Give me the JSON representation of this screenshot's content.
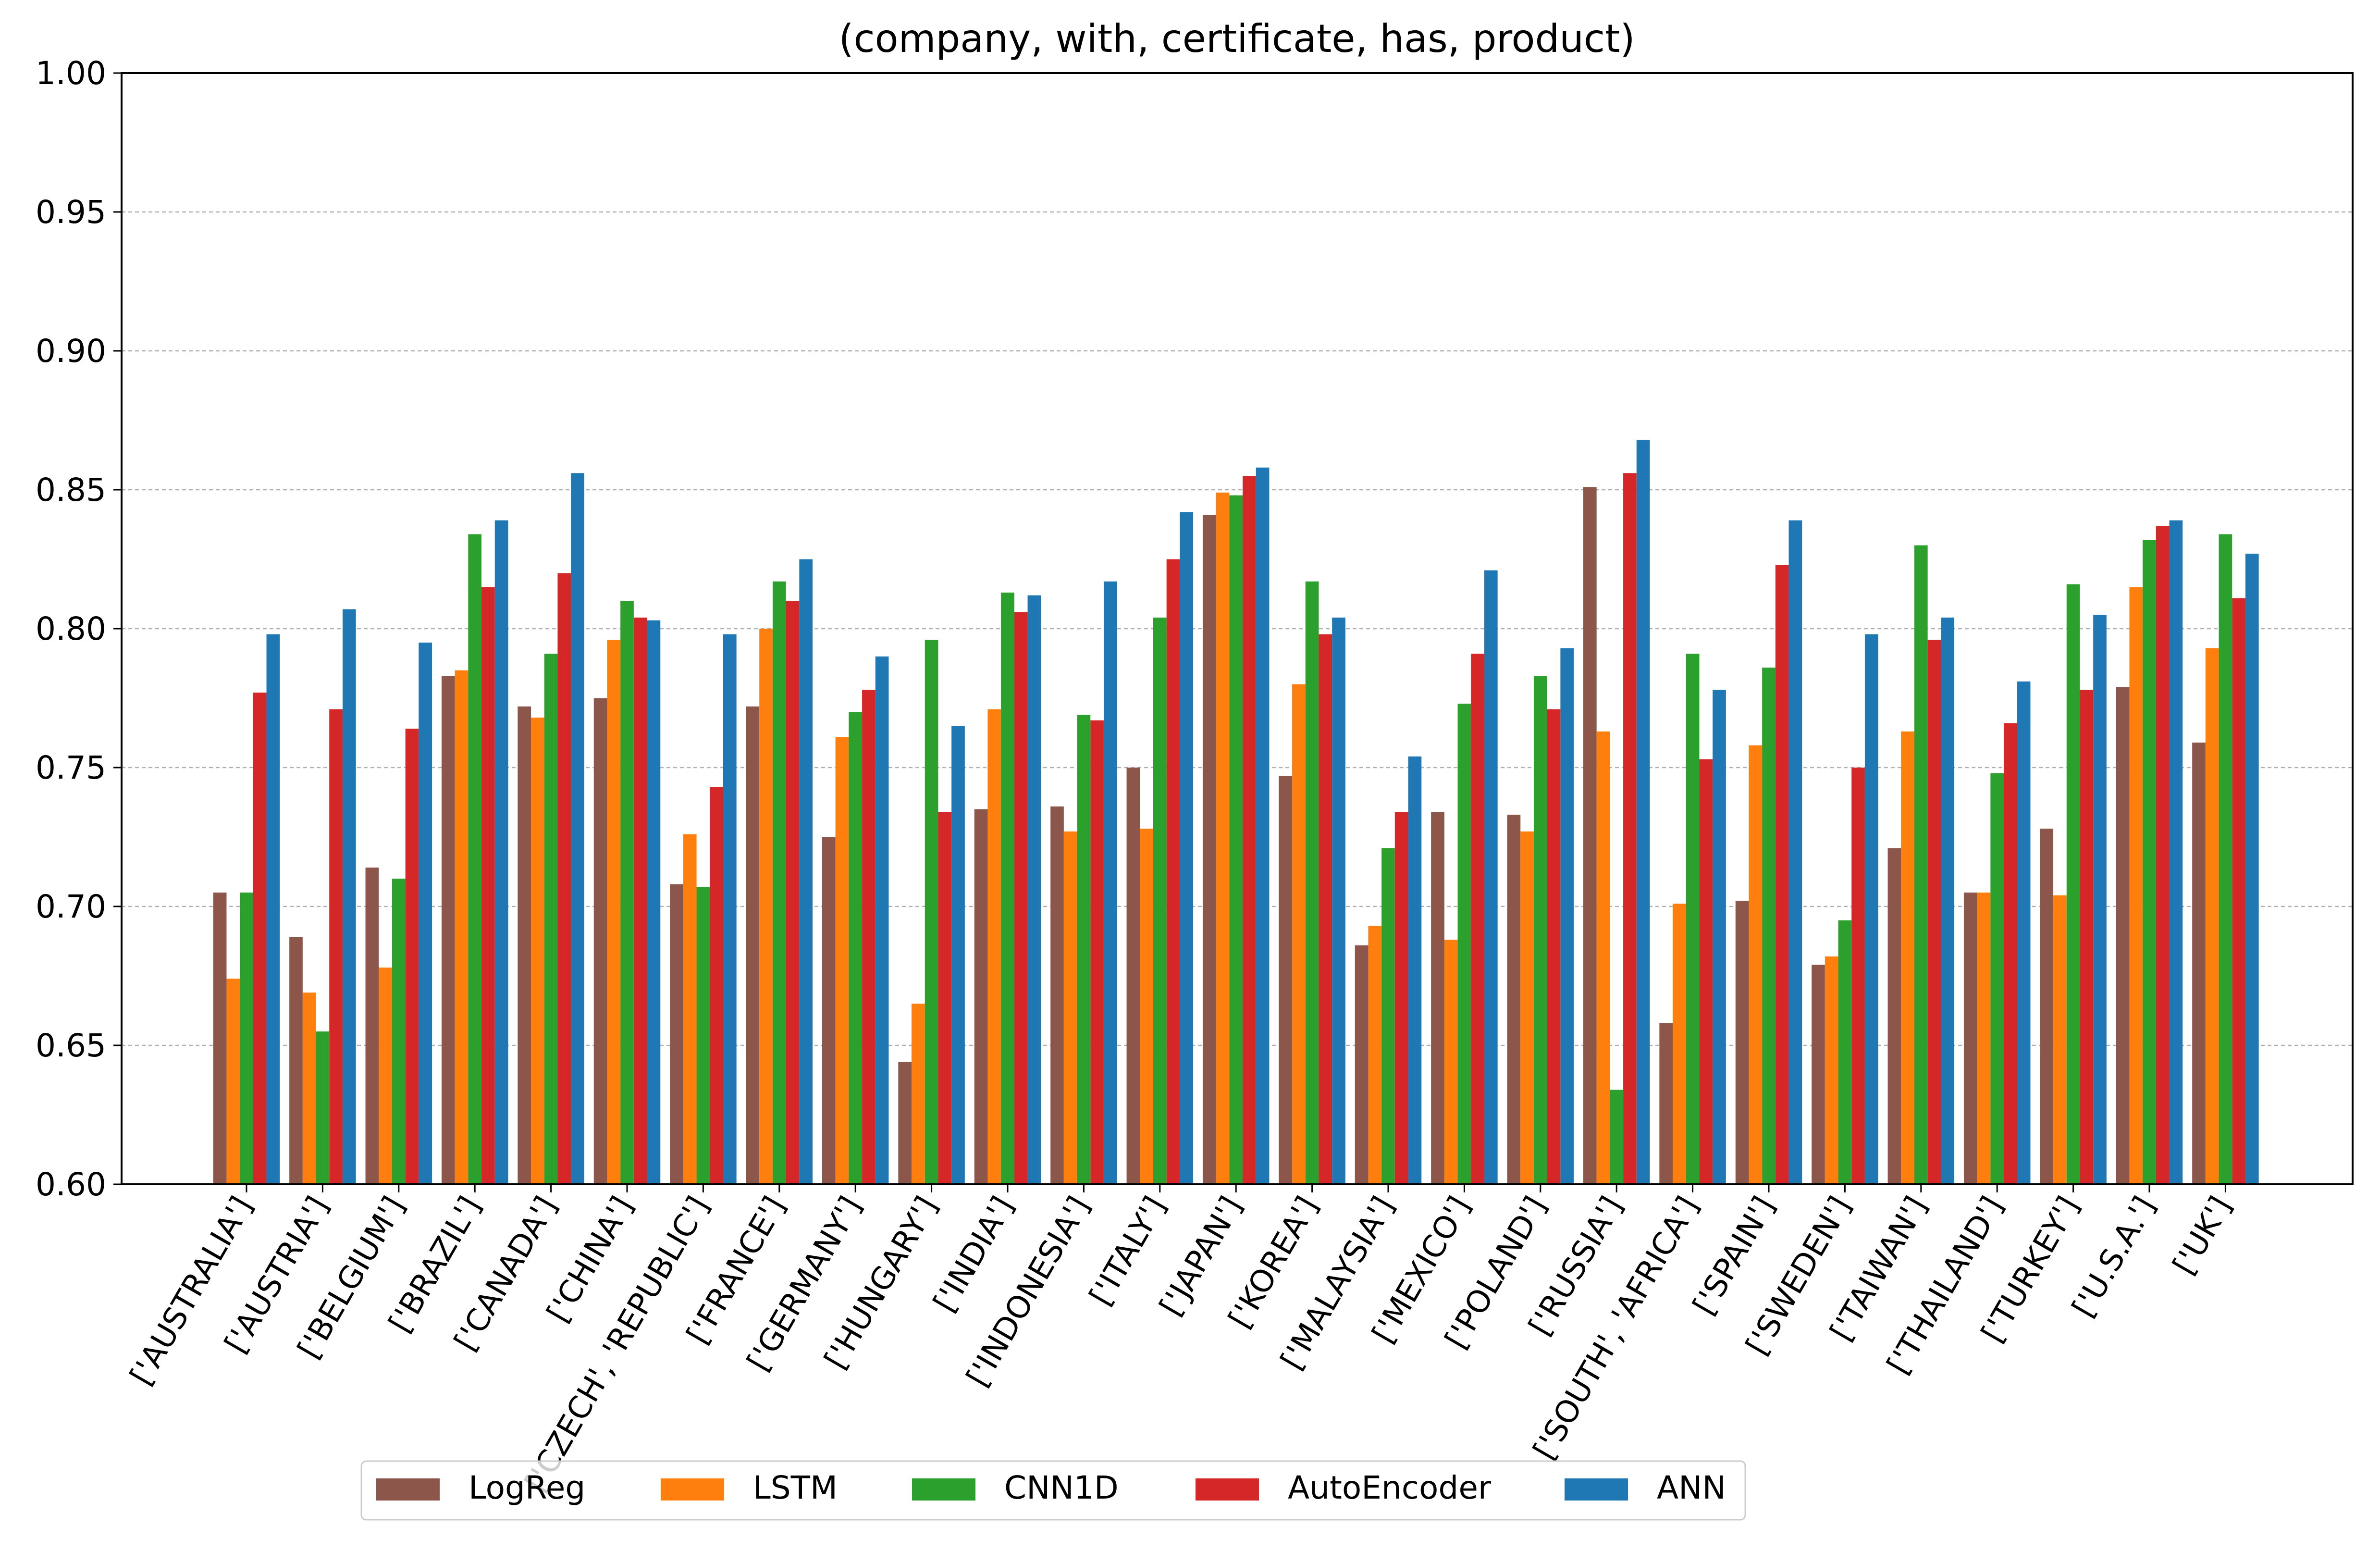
{
  "chart_data": {
    "type": "bar",
    "title": "(company, with, certificate, has, product)",
    "xlabel": "",
    "ylabel": "",
    "ylim": [
      0.6,
      1.0
    ],
    "yticks": [
      "0.60",
      "0.65",
      "0.70",
      "0.75",
      "0.80",
      "0.85",
      "0.90",
      "0.95",
      "1.00"
    ],
    "grid": "y-dashed",
    "legend_position": "bottom-center",
    "categories": [
      "['AUSTRALIA']",
      "['AUSTRIA']",
      "['BELGIUM']",
      "['BRAZIL']",
      "['CANADA']",
      "['CHINA']",
      "['CZECH', 'REPUBLIC']",
      "['FRANCE']",
      "['GERMANY']",
      "['HUNGARY']",
      "['INDIA']",
      "['INDONESIA']",
      "['ITALY']",
      "['JAPAN']",
      "['KOREA']",
      "['MALAYSIA']",
      "['MEXICO']",
      "['POLAND']",
      "['RUSSIA']",
      "['SOUTH', 'AFRICA']",
      "['SPAIN']",
      "['SWEDEN']",
      "['TAIWAN']",
      "['THAILAND']",
      "['TURKEY']",
      "['U.S.A.']",
      "['UK']"
    ],
    "series": [
      {
        "name": "LogReg",
        "color": "#8c564b",
        "values": [
          0.705,
          0.689,
          0.714,
          0.783,
          0.772,
          0.775,
          0.708,
          0.772,
          0.725,
          0.644,
          0.735,
          0.736,
          0.75,
          0.841,
          0.747,
          0.686,
          0.734,
          0.733,
          0.851,
          0.658,
          0.702,
          0.679,
          0.721,
          0.705,
          0.728,
          0.779,
          0.759
        ]
      },
      {
        "name": "LSTM",
        "color": "#ff7f0e",
        "values": [
          0.674,
          0.669,
          0.678,
          0.785,
          0.768,
          0.796,
          0.726,
          0.8,
          0.761,
          0.665,
          0.771,
          0.727,
          0.728,
          0.849,
          0.78,
          0.693,
          0.688,
          0.727,
          0.763,
          0.701,
          0.758,
          0.682,
          0.763,
          0.705,
          0.704,
          0.815,
          0.793
        ]
      },
      {
        "name": "CNN1D",
        "color": "#2ca02c",
        "values": [
          0.705,
          0.655,
          0.71,
          0.834,
          0.791,
          0.81,
          0.707,
          0.817,
          0.77,
          0.796,
          0.813,
          0.769,
          0.804,
          0.848,
          0.817,
          0.721,
          0.773,
          0.783,
          0.634,
          0.791,
          0.786,
          0.695,
          0.83,
          0.748,
          0.816,
          0.832,
          0.834
        ]
      },
      {
        "name": "AutoEncoder",
        "color": "#d62728",
        "values": [
          0.777,
          0.771,
          0.764,
          0.815,
          0.82,
          0.804,
          0.743,
          0.81,
          0.778,
          0.734,
          0.806,
          0.767,
          0.825,
          0.855,
          0.798,
          0.734,
          0.791,
          0.771,
          0.856,
          0.753,
          0.823,
          0.75,
          0.796,
          0.766,
          0.778,
          0.837,
          0.811
        ]
      },
      {
        "name": "ANN",
        "color": "#1f77b4",
        "values": [
          0.798,
          0.807,
          0.795,
          0.839,
          0.856,
          0.803,
          0.798,
          0.825,
          0.79,
          0.765,
          0.812,
          0.817,
          0.842,
          0.858,
          0.804,
          0.754,
          0.821,
          0.793,
          0.868,
          0.778,
          0.839,
          0.798,
          0.804,
          0.781,
          0.805,
          0.839,
          0.827
        ]
      }
    ]
  }
}
